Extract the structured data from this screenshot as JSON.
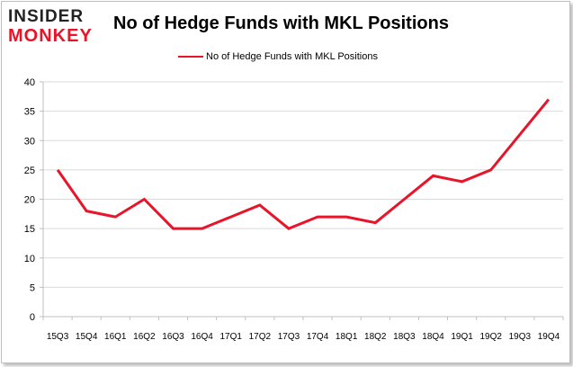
{
  "logo": {
    "line1": "INSIDER",
    "line2": "MONKEY"
  },
  "chart_data": {
    "type": "line",
    "title": "No of Hedge Funds with MKL Positions",
    "categories": [
      "15Q3",
      "15Q4",
      "16Q1",
      "16Q2",
      "16Q3",
      "16Q4",
      "17Q1",
      "17Q2",
      "17Q3",
      "17Q4",
      "18Q1",
      "18Q2",
      "18Q3",
      "18Q4",
      "19Q1",
      "19Q2",
      "19Q3",
      "19Q4"
    ],
    "series": [
      {
        "name": "No of Hedge Funds with MKL Positions",
        "values": [
          25,
          18,
          17,
          20,
          15,
          15,
          17,
          19,
          15,
          17,
          17,
          16,
          20,
          24,
          23,
          25,
          31,
          37
        ],
        "color": "#e8142a"
      }
    ],
    "ylim": [
      0,
      40
    ],
    "yticks": [
      0,
      5,
      10,
      15,
      20,
      25,
      30,
      35,
      40
    ],
    "grid": "horizontal",
    "legend_position": "top-center"
  }
}
